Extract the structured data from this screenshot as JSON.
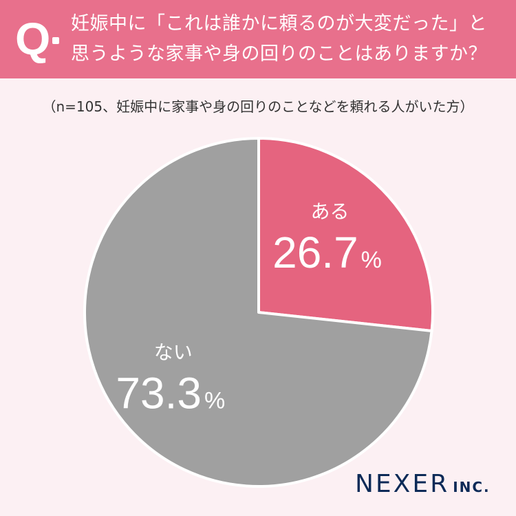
{
  "header": {
    "q_letter": "Q",
    "question_line1": "妊娠中に「これは誰かに頼るのが大変だった」と",
    "question_line2": "思うような家事や身の回りのことはありますか？",
    "background_color": "#e8708c"
  },
  "note": "（n=105、妊娠中に家事や身の回りのことなどを頼れる人がいた方）",
  "logo": {
    "main": "NEXER",
    "sub": "INC.",
    "color": "#0c2a57"
  },
  "chart_data": {
    "type": "pie",
    "start": "12 o'clock",
    "direction": "clockwise",
    "slices": [
      {
        "label": "ある",
        "value": 26.7,
        "value_text": "26.7",
        "unit": "%",
        "color": "#e5647f"
      },
      {
        "label": "ない",
        "value": 73.3,
        "value_text": "73.3",
        "unit": "%",
        "color": "#a0a0a0"
      }
    ]
  }
}
